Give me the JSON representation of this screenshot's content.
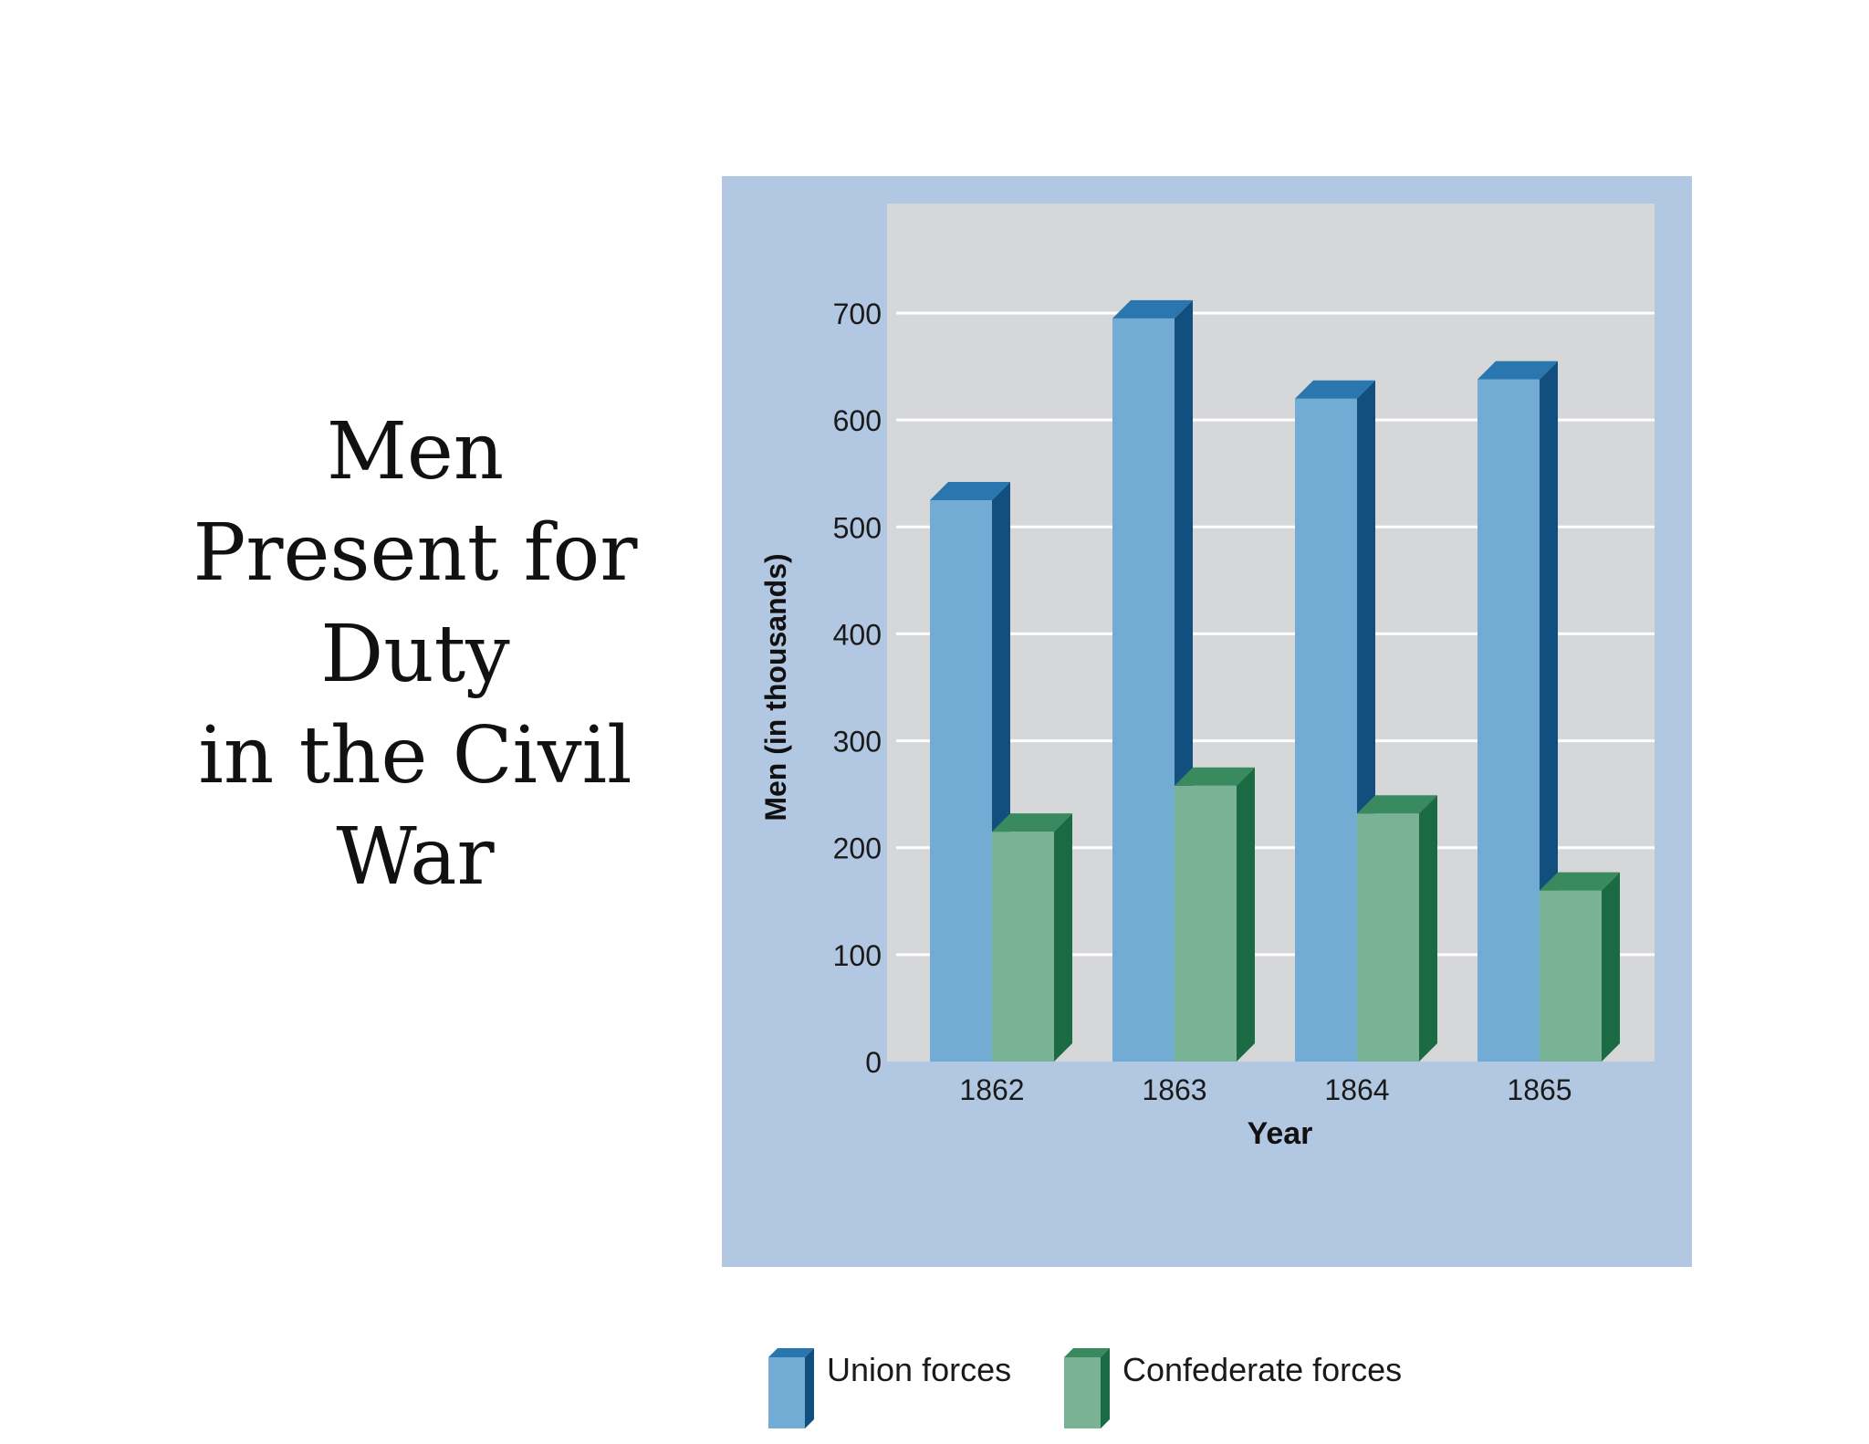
{
  "slide": {
    "title_lines": [
      "Men",
      "Present for",
      "Duty",
      "in the Civil",
      "War"
    ]
  },
  "chart_data": {
    "type": "bar",
    "title": "",
    "categories": [
      "1862",
      "1863",
      "1864",
      "1865"
    ],
    "series": [
      {
        "name": "Union forces",
        "values": [
          525,
          695,
          620,
          638
        ]
      },
      {
        "name": "Confederate forces",
        "values": [
          215,
          258,
          232,
          160
        ]
      }
    ],
    "xlabel": "Year",
    "ylabel": "Men (in thousands)",
    "ylim": [
      0,
      700
    ],
    "yticks": [
      0,
      100,
      200,
      300,
      400,
      500,
      600,
      700
    ],
    "grid": true,
    "legend_position": "bottom-left",
    "style": "3d-bars",
    "colors": {
      "panel_background": "#b2c8e2",
      "plot_background": "#d6d7d9",
      "gridline": "#ffffff",
      "union_front": "#72acd4",
      "union_side": "#134f7e",
      "union_top": "#2a77b0",
      "confederate_front": "#79b295",
      "confederate_side": "#1a6a43",
      "confederate_top": "#3a8a60"
    }
  }
}
